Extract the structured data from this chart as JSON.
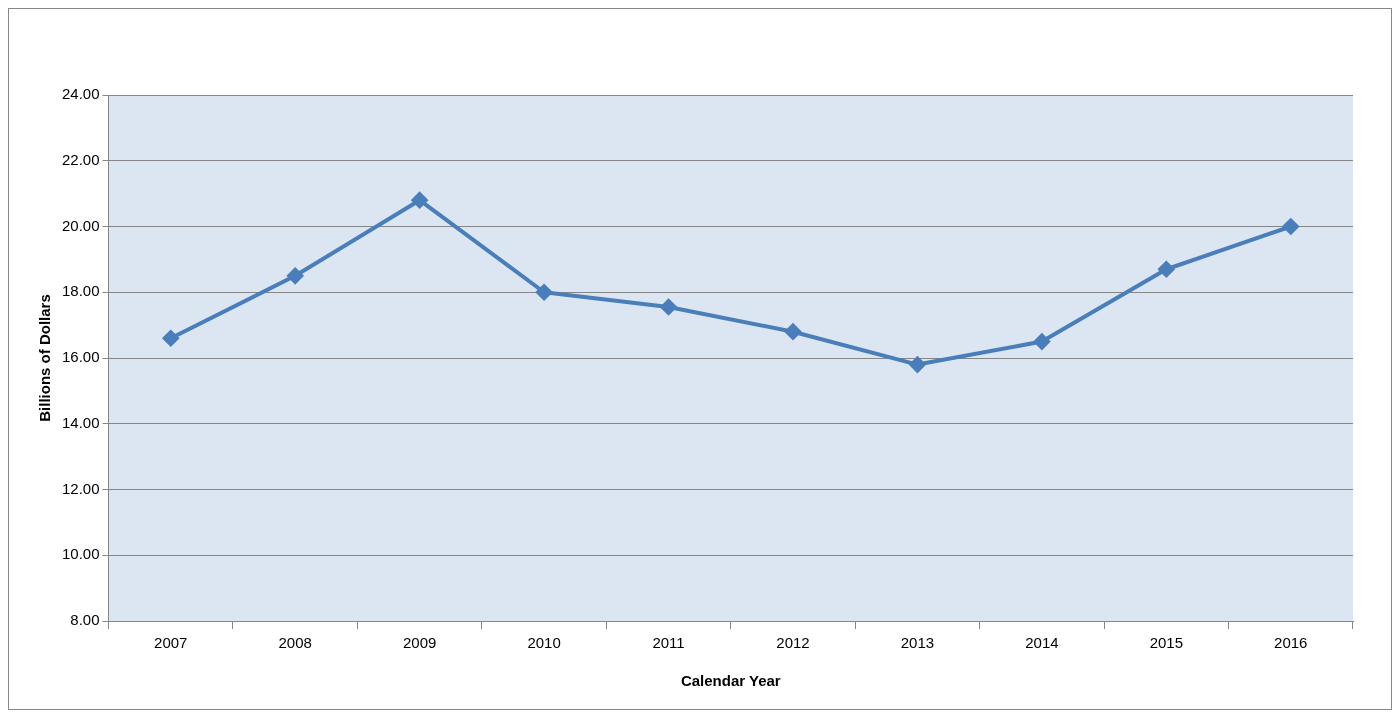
{
  "chart_data": {
    "type": "line",
    "xlabel": "Calendar Year",
    "ylabel": "Billions of Dollars",
    "categories": [
      "2007",
      "2008",
      "2009",
      "2010",
      "2011",
      "2012",
      "2013",
      "2014",
      "2015",
      "2016"
    ],
    "series": [
      {
        "color": "#4a7ebb",
        "values": [
          16.6,
          18.5,
          20.8,
          18.0,
          17.55,
          16.8,
          15.8,
          16.5,
          18.7,
          20.0
        ]
      }
    ],
    "ylim": [
      8,
      24
    ],
    "yticks": [
      {
        "value": 8,
        "label": "8.00"
      },
      {
        "value": 10,
        "label": "10.00"
      },
      {
        "value": 12,
        "label": "12.00"
      },
      {
        "value": 14,
        "label": "14.00"
      },
      {
        "value": 16,
        "label": "16.00"
      },
      {
        "value": 18,
        "label": "18.00"
      },
      {
        "value": 20,
        "label": "20.00"
      },
      {
        "value": 22,
        "label": "22.00"
      },
      {
        "value": 24,
        "label": "24.00"
      }
    ],
    "grid": "y",
    "legend": false,
    "marker": "diamond",
    "line_style": "solid"
  }
}
